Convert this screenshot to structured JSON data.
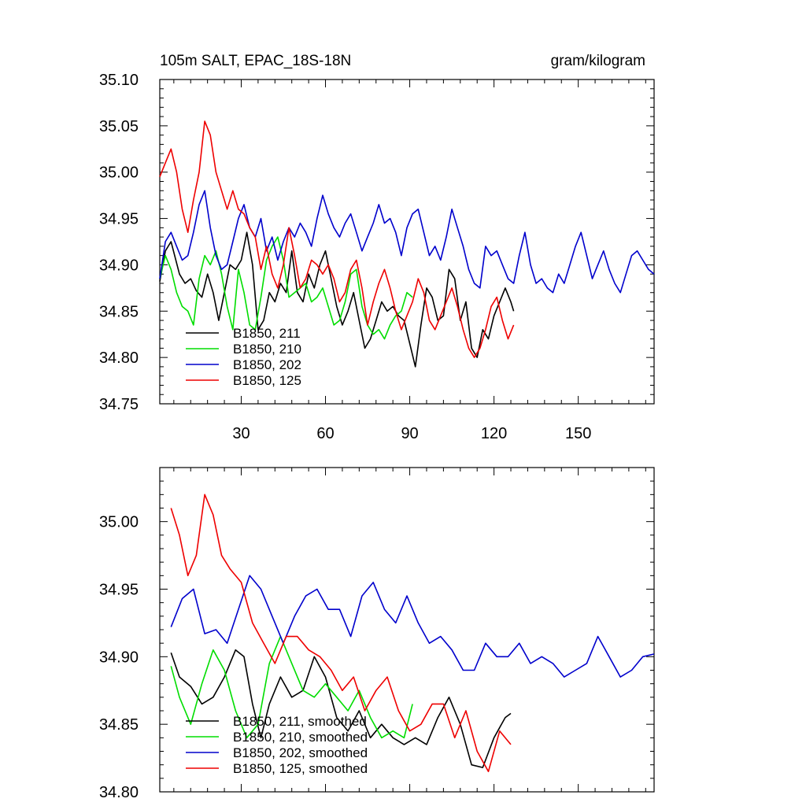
{
  "chart_data": [
    {
      "type": "line",
      "title_left": "105m SALT, EPAC_18S-18N",
      "title_right": "gram/kilogram",
      "xlabel": "",
      "ylabel": "",
      "xlim": [
        1,
        177
      ],
      "ylim": [
        34.75,
        35.1
      ],
      "xticks": [
        30,
        60,
        90,
        120,
        150
      ],
      "xtick_labels": [
        "30",
        "60",
        "90",
        "120",
        "150"
      ],
      "yticks": [
        34.75,
        34.8,
        34.85,
        34.9,
        34.95,
        35.0,
        35.05,
        35.1
      ],
      "ytick_labels": [
        "34.75",
        "34.80",
        "34.85",
        "34.90",
        "34.95",
        "35.00",
        "35.05",
        "35.10"
      ],
      "legend_position": "bottom-left",
      "series": [
        {
          "name": "B1850, 211",
          "color": "#000000",
          "x": [
            1,
            3,
            5,
            8,
            10,
            12,
            14,
            16,
            18,
            20,
            22,
            24,
            26,
            28,
            30,
            32,
            34,
            36,
            38,
            40,
            42,
            44,
            46,
            48,
            50,
            52,
            54,
            56,
            58,
            60,
            62,
            64,
            66,
            68,
            70,
            72,
            74,
            76,
            78,
            80,
            82,
            84,
            86,
            88,
            90,
            92,
            94,
            96,
            98,
            100,
            102,
            104,
            106,
            108,
            110,
            112,
            114,
            116,
            118,
            120,
            122,
            124,
            126,
            127
          ],
          "y": [
            34.882,
            34.915,
            34.925,
            34.89,
            34.88,
            34.885,
            34.872,
            34.865,
            34.89,
            34.87,
            34.84,
            34.87,
            34.9,
            34.895,
            34.905,
            34.935,
            34.9,
            34.83,
            34.84,
            34.87,
            34.86,
            34.88,
            34.87,
            34.915,
            34.87,
            34.86,
            34.89,
            34.875,
            34.9,
            34.915,
            34.885,
            34.855,
            34.835,
            34.85,
            34.87,
            34.84,
            34.81,
            34.82,
            34.84,
            34.86,
            34.85,
            34.855,
            34.845,
            34.84,
            34.815,
            34.79,
            34.835,
            34.875,
            34.865,
            34.84,
            34.845,
            34.895,
            34.885,
            34.84,
            34.86,
            34.81,
            34.8,
            34.83,
            34.82,
            34.845,
            34.86,
            34.875,
            34.86,
            34.85
          ]
        },
        {
          "name": "B1850, 210",
          "color": "#00dd00",
          "x": [
            1,
            3,
            5,
            7,
            9,
            11,
            13,
            15,
            17,
            19,
            21,
            23,
            25,
            27,
            29,
            31,
            33,
            35,
            37,
            39,
            41,
            43,
            45,
            47,
            49,
            51,
            53,
            55,
            57,
            59,
            61,
            63,
            65,
            67,
            69,
            71,
            73,
            75,
            77,
            79,
            81,
            83,
            85,
            87,
            89,
            91
          ],
          "y": [
            34.885,
            34.91,
            34.895,
            34.87,
            34.855,
            34.85,
            34.835,
            34.885,
            34.91,
            34.9,
            34.915,
            34.89,
            34.855,
            34.83,
            34.895,
            34.87,
            34.835,
            34.83,
            34.865,
            34.905,
            34.92,
            34.93,
            34.905,
            34.865,
            34.87,
            34.875,
            34.88,
            34.86,
            34.865,
            34.875,
            34.855,
            34.835,
            34.84,
            34.86,
            34.89,
            34.895,
            34.855,
            34.835,
            34.825,
            34.83,
            34.82,
            34.835,
            34.845,
            34.85,
            34.87,
            34.865
          ]
        },
        {
          "name": "B1850, 202",
          "color": "#0000cc",
          "x": [
            1,
            3,
            5,
            7,
            9,
            11,
            13,
            15,
            17,
            19,
            21,
            23,
            25,
            27,
            29,
            31,
            33,
            35,
            37,
            39,
            41,
            43,
            45,
            47,
            49,
            51,
            53,
            55,
            57,
            59,
            61,
            63,
            65,
            67,
            69,
            71,
            73,
            75,
            77,
            79,
            81,
            83,
            85,
            87,
            89,
            91,
            93,
            95,
            97,
            99,
            101,
            103,
            105,
            107,
            109,
            111,
            113,
            115,
            117,
            119,
            121,
            123,
            125,
            127,
            129,
            131,
            133,
            135,
            137,
            139,
            141,
            143,
            145,
            147,
            149,
            151,
            153,
            155,
            157,
            159,
            161,
            163,
            165,
            167,
            169,
            171,
            173,
            175,
            177
          ],
          "y": [
            34.885,
            34.925,
            34.935,
            34.92,
            34.905,
            34.91,
            34.935,
            34.965,
            34.98,
            34.94,
            34.91,
            34.895,
            34.9,
            34.925,
            34.95,
            34.965,
            34.94,
            34.93,
            34.95,
            34.915,
            34.93,
            34.905,
            34.925,
            34.94,
            34.93,
            34.945,
            34.935,
            34.92,
            34.95,
            34.975,
            34.955,
            34.94,
            34.93,
            34.945,
            34.955,
            34.935,
            34.915,
            34.93,
            34.945,
            34.965,
            34.945,
            34.95,
            34.935,
            34.91,
            34.94,
            34.955,
            34.96,
            34.935,
            34.91,
            34.92,
            34.905,
            34.93,
            34.96,
            34.94,
            34.92,
            34.895,
            34.88,
            34.875,
            34.92,
            34.91,
            34.915,
            34.9,
            34.885,
            34.88,
            34.91,
            34.935,
            34.9,
            34.88,
            34.885,
            34.875,
            34.87,
            34.89,
            34.88,
            34.9,
            34.92,
            34.935,
            34.91,
            34.885,
            34.9,
            34.915,
            34.895,
            34.88,
            34.87,
            34.89,
            34.91,
            34.915,
            34.905,
            34.895,
            34.89
          ]
        },
        {
          "name": "B1850, 125",
          "color": "#ee0000",
          "x": [
            1,
            3,
            5,
            7,
            9,
            11,
            13,
            15,
            17,
            19,
            21,
            23,
            25,
            27,
            29,
            31,
            33,
            35,
            37,
            39,
            41,
            43,
            45,
            47,
            49,
            51,
            53,
            55,
            57,
            59,
            61,
            63,
            65,
            67,
            69,
            71,
            73,
            75,
            77,
            79,
            81,
            83,
            85,
            87,
            89,
            91,
            93,
            95,
            97,
            99,
            101,
            103,
            105,
            107,
            109,
            111,
            113,
            115,
            117,
            119,
            121,
            123,
            125,
            127
          ],
          "y": [
            34.995,
            35.01,
            35.025,
            35.0,
            34.96,
            34.935,
            34.97,
            35.0,
            35.055,
            35.04,
            35.0,
            34.98,
            34.96,
            34.98,
            34.96,
            34.955,
            34.94,
            34.93,
            34.895,
            34.92,
            34.89,
            34.875,
            34.9,
            34.94,
            34.91,
            34.875,
            34.885,
            34.905,
            34.9,
            34.89,
            34.9,
            34.885,
            34.86,
            34.87,
            34.895,
            34.905,
            34.875,
            34.835,
            34.86,
            34.88,
            34.895,
            34.875,
            34.85,
            34.83,
            34.845,
            34.86,
            34.885,
            34.87,
            34.84,
            34.83,
            34.845,
            34.86,
            34.875,
            34.855,
            34.83,
            34.81,
            34.8,
            34.81,
            34.83,
            34.855,
            34.865,
            34.84,
            34.82,
            34.835
          ]
        }
      ]
    },
    {
      "type": "line",
      "title_left": "",
      "title_right": "",
      "xlabel": "",
      "ylabel": "",
      "xlim": [
        1,
        177
      ],
      "ylim": [
        34.8,
        35.04
      ],
      "xticks": [
        30,
        60,
        90,
        120,
        150
      ],
      "xtick_labels": [],
      "yticks": [
        34.8,
        34.85,
        34.9,
        34.95,
        35.0
      ],
      "ytick_labels": [
        "34.80",
        "34.85",
        "34.90",
        "34.95",
        "35.00"
      ],
      "legend_position": "bottom-left",
      "series": [
        {
          "name": "B1850, 211, smoothed",
          "color": "#000000",
          "x": [
            5,
            8,
            12,
            16,
            20,
            24,
            28,
            31,
            34,
            37,
            40,
            44,
            48,
            52,
            56,
            60,
            64,
            68,
            72,
            76,
            80,
            84,
            88,
            92,
            96,
            100,
            104,
            108,
            112,
            116,
            120,
            124,
            126
          ],
          "y": [
            34.903,
            34.885,
            34.878,
            34.865,
            34.87,
            34.885,
            34.905,
            34.9,
            34.865,
            34.84,
            34.865,
            34.885,
            34.87,
            34.875,
            34.9,
            34.885,
            34.855,
            34.845,
            34.86,
            34.84,
            34.85,
            34.84,
            34.835,
            34.84,
            34.835,
            34.855,
            34.87,
            34.85,
            34.82,
            34.818,
            34.84,
            34.855,
            34.858
          ]
        },
        {
          "name": "B1850, 210, smoothed",
          "color": "#00dd00",
          "x": [
            5,
            8,
            12,
            16,
            20,
            24,
            28,
            32,
            36,
            40,
            44,
            48,
            52,
            56,
            60,
            64,
            68,
            72,
            76,
            80,
            84,
            88,
            91
          ],
          "y": [
            34.893,
            34.87,
            34.85,
            34.88,
            34.905,
            34.89,
            34.86,
            34.84,
            34.85,
            34.895,
            34.915,
            34.895,
            34.875,
            34.87,
            34.88,
            34.87,
            34.86,
            34.875,
            34.855,
            34.84,
            34.845,
            34.84,
            34.865
          ]
        },
        {
          "name": "B1850, 202, smoothed",
          "color": "#0000cc",
          "x": [
            5,
            9,
            13,
            17,
            21,
            25,
            29,
            33,
            37,
            41,
            45,
            49,
            53,
            57,
            61,
            65,
            69,
            73,
            77,
            81,
            85,
            89,
            93,
            97,
            101,
            105,
            109,
            113,
            117,
            121,
            125,
            129,
            133,
            137,
            141,
            145,
            149,
            153,
            157,
            161,
            165,
            169,
            173,
            177
          ],
          "y": [
            34.922,
            34.943,
            34.95,
            34.917,
            34.92,
            34.91,
            34.935,
            34.96,
            34.95,
            34.93,
            34.91,
            34.93,
            34.945,
            34.95,
            34.935,
            34.935,
            34.915,
            34.945,
            34.955,
            34.935,
            34.925,
            34.945,
            34.925,
            34.91,
            34.915,
            34.905,
            34.89,
            34.89,
            34.91,
            34.9,
            34.9,
            34.91,
            34.895,
            34.9,
            34.895,
            34.885,
            34.89,
            34.895,
            34.915,
            34.9,
            34.885,
            34.89,
            34.9,
            34.902
          ]
        },
        {
          "name": "B1850, 125, smoothed",
          "color": "#ee0000",
          "x": [
            5,
            8,
            11,
            14,
            17,
            20,
            23,
            26,
            30,
            34,
            38,
            42,
            46,
            50,
            54,
            58,
            62,
            66,
            70,
            74,
            78,
            82,
            86,
            90,
            94,
            98,
            102,
            106,
            110,
            114,
            118,
            122,
            126
          ],
          "y": [
            35.01,
            34.99,
            34.96,
            34.975,
            35.02,
            35.005,
            34.975,
            34.965,
            34.955,
            34.925,
            34.91,
            34.895,
            34.915,
            34.915,
            34.905,
            34.9,
            34.89,
            34.875,
            34.885,
            34.86,
            34.875,
            34.885,
            34.86,
            34.845,
            34.85,
            34.865,
            34.865,
            34.84,
            34.86,
            34.83,
            34.815,
            34.845,
            34.835
          ]
        }
      ]
    }
  ]
}
